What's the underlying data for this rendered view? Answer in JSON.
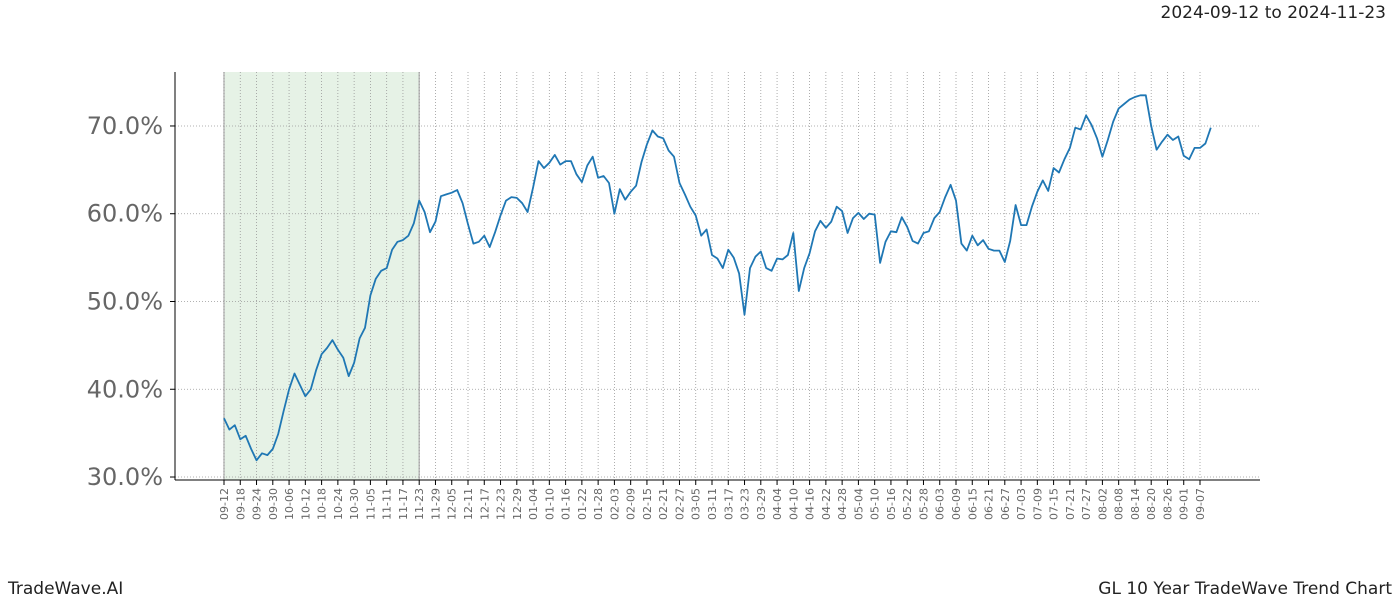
{
  "chart_data": {
    "type": "line",
    "subtitle": "2024-09-12 to 2024-11-23",
    "categories": [
      "09-12",
      null,
      null,
      "09-18",
      null,
      null,
      "09-24",
      null,
      null,
      "09-30",
      null,
      null,
      "10-06",
      null,
      null,
      "10-12",
      null,
      null,
      "10-18",
      null,
      null,
      "10-24",
      null,
      null,
      "10-30",
      null,
      null,
      "11-05",
      null,
      null,
      "11-11",
      null,
      null,
      "11-17",
      null,
      null,
      "11-23",
      null,
      null,
      "11-29",
      null,
      null,
      "12-05",
      null,
      null,
      "12-11",
      null,
      null,
      "12-17",
      null,
      null,
      "12-23",
      null,
      null,
      "12-29",
      null,
      null,
      "01-04",
      null,
      null,
      "01-10",
      null,
      null,
      "01-16",
      null,
      null,
      "01-22",
      null,
      null,
      "01-28",
      null,
      null,
      "02-03",
      null,
      null,
      "02-09",
      null,
      null,
      "02-15",
      null,
      null,
      "02-21",
      null,
      null,
      "02-27",
      null,
      null,
      "03-05",
      null,
      null,
      "03-11",
      null,
      null,
      "03-17",
      null,
      null,
      "03-23",
      null,
      null,
      "03-29",
      null,
      null,
      "04-04",
      null,
      null,
      "04-10",
      null,
      null,
      "04-16",
      null,
      null,
      "04-22",
      null,
      null,
      "04-28",
      null,
      null,
      "05-04",
      null,
      null,
      "05-10",
      null,
      null,
      "05-16",
      null,
      null,
      "05-22",
      null,
      null,
      "05-28",
      null,
      null,
      "06-03",
      null,
      null,
      "06-09",
      null,
      null,
      "06-15",
      null,
      null,
      "06-21",
      null,
      null,
      "06-27",
      null,
      null,
      "07-03",
      null,
      null,
      "07-09",
      null,
      null,
      "07-15",
      null,
      null,
      "07-21",
      null,
      null,
      "07-27",
      null,
      null,
      "08-02",
      null,
      null,
      "08-08",
      null,
      null,
      "08-14",
      null,
      null,
      "08-20",
      null,
      null,
      "08-26",
      null,
      null,
      "09-01",
      null,
      null,
      "09-07",
      null,
      null
    ],
    "values": [
      36.7,
      35.4,
      35.9,
      34.3,
      34.7,
      33.2,
      31.9,
      32.7,
      32.5,
      33.2,
      34.9,
      37.5,
      40,
      41.8,
      40.5,
      39.2,
      40,
      42.2,
      44,
      44.7,
      45.6,
      44.5,
      43.6,
      41.5,
      43,
      45.8,
      47,
      50.7,
      52.6,
      53.5,
      53.8,
      55.9,
      56.8,
      57,
      57.5,
      58.9,
      61.5,
      60.2,
      57.9,
      59.1,
      62,
      62.2,
      62.4,
      62.7,
      61.2,
      58.8,
      56.6,
      56.8,
      57.5,
      56.2,
      57.9,
      59.8,
      61.5,
      61.9,
      61.8,
      61.2,
      60.2,
      63,
      66,
      65.2,
      65.8,
      66.7,
      65.6,
      66,
      66,
      64.5,
      63.6,
      65.5,
      66.5,
      64.1,
      64.3,
      63.5,
      60,
      62.8,
      61.6,
      62.5,
      63.2,
      65.9,
      67.9,
      69.5,
      68.8,
      68.6,
      67.2,
      66.5,
      63.5,
      62.2,
      60.8,
      59.8,
      57.5,
      58.2,
      55.3,
      54.9,
      53.8,
      55.9,
      55,
      53.2,
      48.5,
      53.8,
      55.1,
      55.7,
      53.8,
      53.5,
      54.9,
      54.8,
      55.3,
      57.8,
      51.2,
      53.8,
      55.5,
      58,
      59.2,
      58.4,
      59.1,
      60.8,
      60.3,
      57.8,
      59.5,
      60.1,
      59.4,
      60,
      59.9,
      54.4,
      56.8,
      58,
      57.9,
      59.6,
      58.5,
      56.9,
      56.6,
      57.8,
      58,
      59.5,
      60.2,
      61.9,
      63.3,
      61.5,
      56.6,
      55.8,
      57.5,
      56.4,
      57,
      56,
      55.8,
      55.8,
      54.5,
      56.9,
      61,
      58.7,
      58.7,
      60.8,
      62.5,
      63.8,
      62.6,
      65.2,
      64.7,
      66.2,
      67.5,
      69.8,
      69.6,
      71.2,
      70.1,
      68.6,
      66.5,
      68.4,
      70.5,
      72,
      72.5,
      73,
      73.3,
      73.5,
      73.5,
      70,
      67.3,
      68.2,
      69,
      68.4,
      68.8,
      66.6,
      66.2,
      67.5,
      67.5,
      68,
      69.8
    ],
    "color": "#1f77b4",
    "ylim": [
      29.66,
      76.15
    ],
    "yticks": [
      {
        "value": 30,
        "label": "30.0%"
      },
      {
        "value": 40,
        "label": "40.0%"
      },
      {
        "value": 50,
        "label": "50.0%"
      },
      {
        "value": 60,
        "label": "60.0%"
      },
      {
        "value": 70,
        "label": "70.0%"
      }
    ],
    "grid": true,
    "highlight": [
      0,
      36
    ],
    "highlight_color": "#e6f2e6"
  },
  "footer": {
    "brand": "TradeWave.AI",
    "caption": "GL 10 Year TradeWave Trend Chart"
  }
}
